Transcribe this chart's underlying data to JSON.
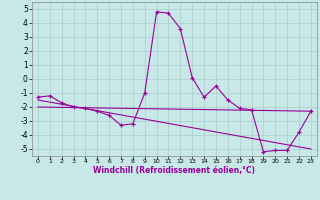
{
  "x": [
    0,
    1,
    2,
    3,
    4,
    5,
    6,
    7,
    8,
    9,
    10,
    11,
    12,
    13,
    14,
    15,
    16,
    17,
    18,
    19,
    20,
    21,
    22,
    23
  ],
  "y_main": [
    -1.3,
    -1.2,
    -1.7,
    -2.0,
    -2.1,
    -2.3,
    -2.6,
    -3.3,
    -3.2,
    -1.0,
    4.8,
    4.7,
    3.6,
    0.1,
    -1.3,
    -0.5,
    -1.5,
    -2.1,
    -2.2,
    -5.2,
    -5.1,
    -5.1,
    -3.8,
    -2.3
  ],
  "line_color": "#990099",
  "bg_color": "#c8e8e8",
  "grid_color": "#aacccc",
  "xlabel": "Windchill (Refroidissement éolien,°C)",
  "ylim": [
    -5.5,
    5.5
  ],
  "xlim": [
    -0.5,
    23.5
  ],
  "yticks": [
    -5,
    -4,
    -3,
    -2,
    -1,
    0,
    1,
    2,
    3,
    4,
    5
  ],
  "xticks": [
    0,
    1,
    2,
    3,
    4,
    5,
    6,
    7,
    8,
    9,
    10,
    11,
    12,
    13,
    14,
    15,
    16,
    17,
    18,
    19,
    20,
    21,
    22,
    23
  ],
  "line2_x": [
    0,
    23
  ],
  "line2_y": [
    -2.0,
    -2.3
  ],
  "line3_x": [
    0,
    23
  ],
  "line3_y": [
    -1.5,
    -5.0
  ]
}
